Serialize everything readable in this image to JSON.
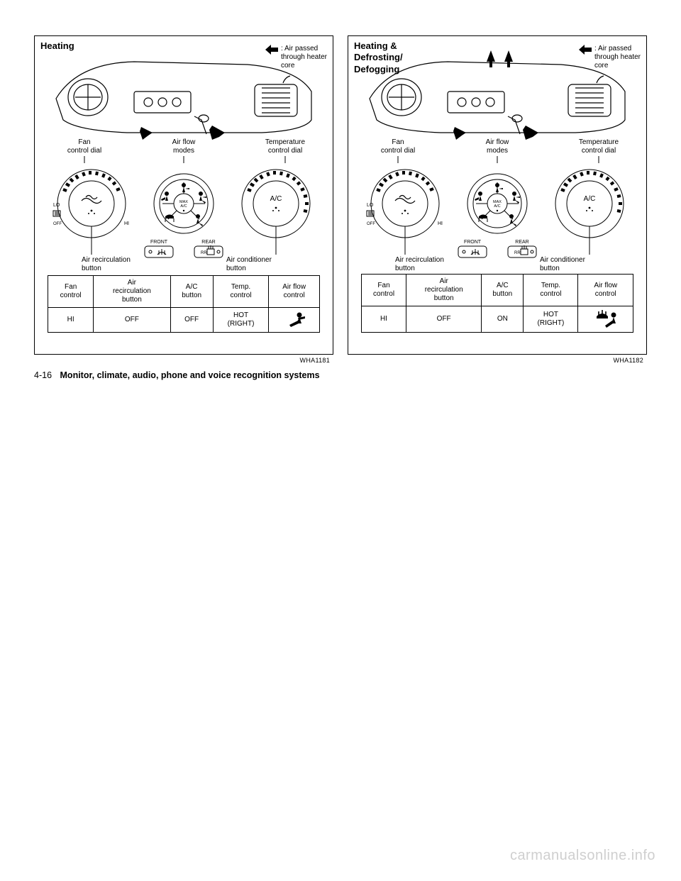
{
  "page": {
    "number": "4-16",
    "section_title": "Monitor, climate, audio, phone and voice recognition systems",
    "watermark": "carmanualsonline.info"
  },
  "legend": {
    "text_l1": ": Air passed",
    "text_l2": "through heater",
    "text_l3": "core",
    "arrow_fill": "#000000"
  },
  "labels": {
    "fan_l1": "Fan",
    "fan_l2": "control dial",
    "airflow_l1": "Air flow",
    "airflow_l2": "modes",
    "temp_l1": "Temperature",
    "temp_l2": "control dial",
    "recirc_l1": "Air recirculation",
    "recirc_l2": "button",
    "ac_l1": "Air conditioner",
    "ac_l2": "button"
  },
  "dial": {
    "ac_text": "A/C",
    "max_ac_text": "MAX\nA/C",
    "front_label": "FRONT",
    "rear_label": "REAR",
    "lo_label": "LO",
    "hi_label": "HI",
    "off_label": "OFF",
    "rr_label": "RR"
  },
  "panels": [
    {
      "title": "Heating",
      "code": "WHA1181",
      "table": {
        "headers": [
          "Fan\ncontrol",
          "Air\nrecirculation\nbutton",
          "A/C\nbutton",
          "Temp.\ncontrol",
          "Air flow\ncontrol"
        ],
        "values": [
          "HI",
          "OFF",
          "OFF",
          "HOT\n(RIGHT)"
        ],
        "mode_icon": "foot"
      }
    },
    {
      "title": "Heating &\nDefrosting/\nDefogging",
      "code": "WHA1182",
      "table": {
        "headers": [
          "Fan\ncontrol",
          "Air\nrecirculation\nbutton",
          "A/C\nbutton",
          "Temp.\ncontrol",
          "Air flow\ncontrol"
        ],
        "values": [
          "HI",
          "OFF",
          "ON",
          "HOT\n(RIGHT)"
        ],
        "mode_icon": "defrost-foot"
      }
    }
  ],
  "colors": {
    "stroke": "#000000",
    "bg": "#ffffff"
  }
}
